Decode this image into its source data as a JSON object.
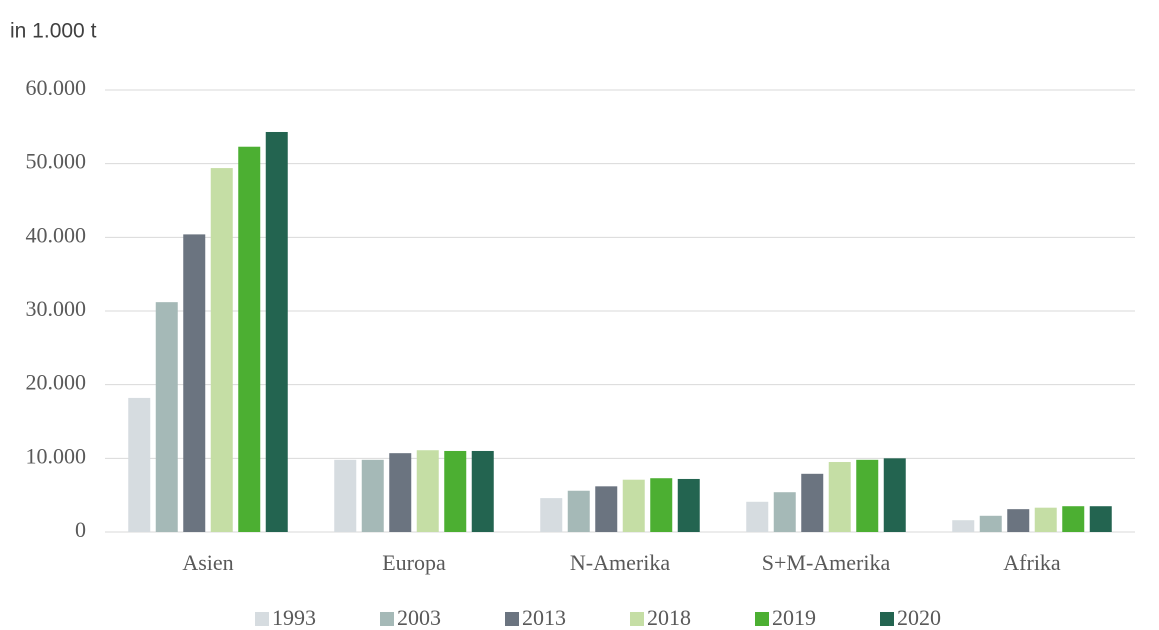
{
  "chart_data": {
    "type": "bar",
    "y_label": "in 1.000 t",
    "categories": [
      "Asien",
      "Europa",
      "N-Amerika",
      "S+M-Amerika",
      "Afrika"
    ],
    "series": [
      {
        "name": "1993",
        "color": "#d6dce0",
        "values": [
          18200,
          9800,
          4600,
          4100,
          1600
        ]
      },
      {
        "name": "2003",
        "color": "#a5b9b7",
        "values": [
          31200,
          9800,
          5600,
          5400,
          2200
        ]
      },
      {
        "name": "2013",
        "color": "#6b7480",
        "values": [
          40400,
          10700,
          6200,
          7900,
          3100
        ]
      },
      {
        "name": "2018",
        "color": "#c5dea5",
        "values": [
          49400,
          11100,
          7100,
          9500,
          3300
        ]
      },
      {
        "name": "2019",
        "color": "#4caf32",
        "values": [
          52300,
          11000,
          7300,
          9800,
          3500
        ]
      },
      {
        "name": "2020",
        "color": "#236450",
        "values": [
          54300,
          11000,
          7200,
          10000,
          3500
        ]
      }
    ],
    "ylim": [
      0,
      60000
    ],
    "yticks": [
      0,
      {
        "value": 10000,
        "label": "10.000"
      },
      {
        "value": 20000,
        "label": "20.000"
      },
      {
        "value": 30000,
        "label": "30.000"
      },
      {
        "value": 40000,
        "label": "40.000"
      },
      {
        "value": 50000,
        "label": "50.000"
      },
      {
        "value": 60000,
        "label": "60.000"
      }
    ],
    "grid": true,
    "legend": "bottom"
  }
}
